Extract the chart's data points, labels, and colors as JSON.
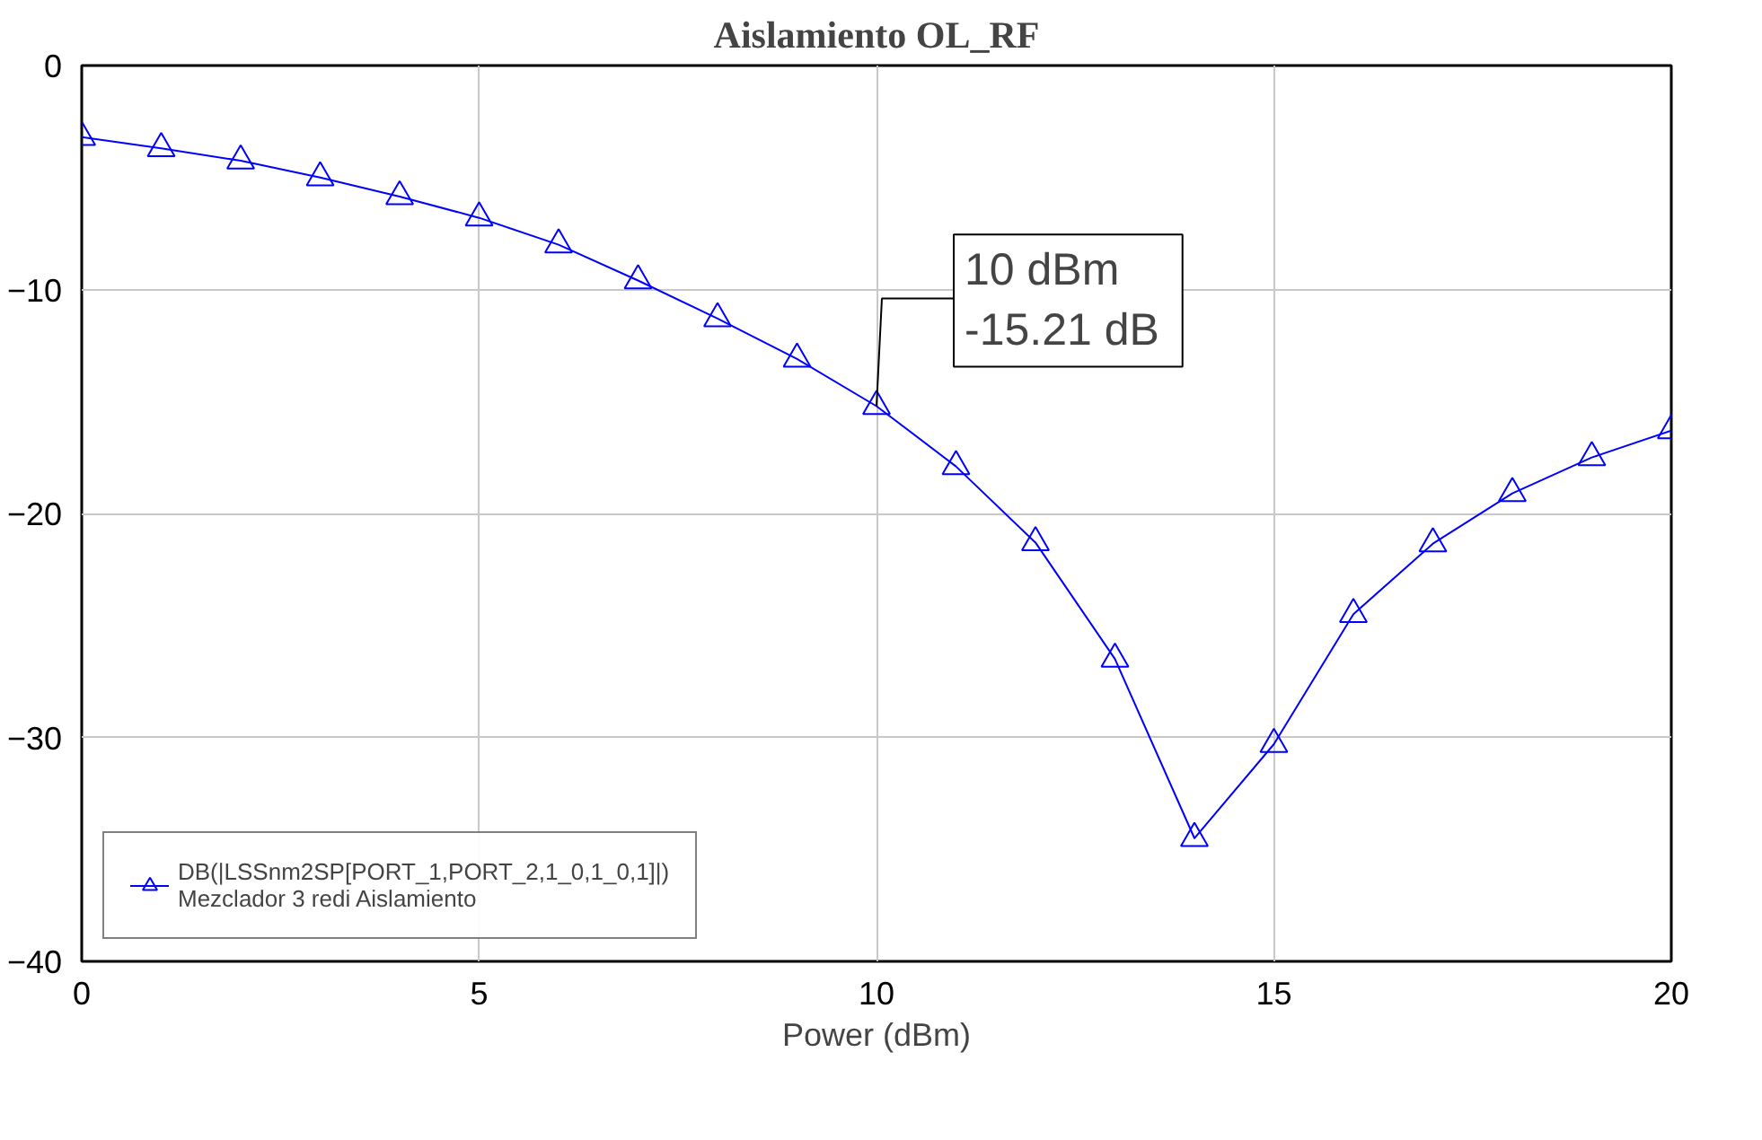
{
  "chart_data": {
    "type": "line",
    "title": "Aislamiento OL_RF",
    "xlabel": "Power (dBm)",
    "x": [
      0,
      1,
      2,
      3,
      4,
      5,
      6,
      7,
      8,
      9,
      10,
      11,
      12,
      13,
      14,
      15,
      16,
      17,
      18,
      19,
      20
    ],
    "series": [
      {
        "name": "DB(|LSSnm2SP[PORT_1,PORT_2,1_0,1_0,1]|)\nMezclador 3 redi Aislamiento",
        "color": "#0000ff",
        "values": [
          -3.2,
          -3.7,
          -4.25,
          -5.0,
          -5.85,
          -6.8,
          -8.0,
          -9.6,
          -11.3,
          -13.1,
          -15.21,
          -17.9,
          -21.3,
          -26.5,
          -34.5,
          -30.3,
          -24.5,
          -21.35,
          -19.1,
          -17.5,
          -16.3
        ]
      }
    ],
    "annotations": [
      {
        "text": "10 dBm\n -15.21 dB",
        "x": 10,
        "y": -15.21
      }
    ],
    "xlim": [
      0,
      20
    ],
    "ylim": [
      -40,
      0
    ],
    "xticks": [
      0,
      5,
      10,
      15,
      20
    ],
    "yticks": [
      -40,
      -30,
      -20,
      -10,
      0
    ],
    "grid": true,
    "legend": "bottom left",
    "marker": "triangle",
    "line_style": "solid"
  }
}
